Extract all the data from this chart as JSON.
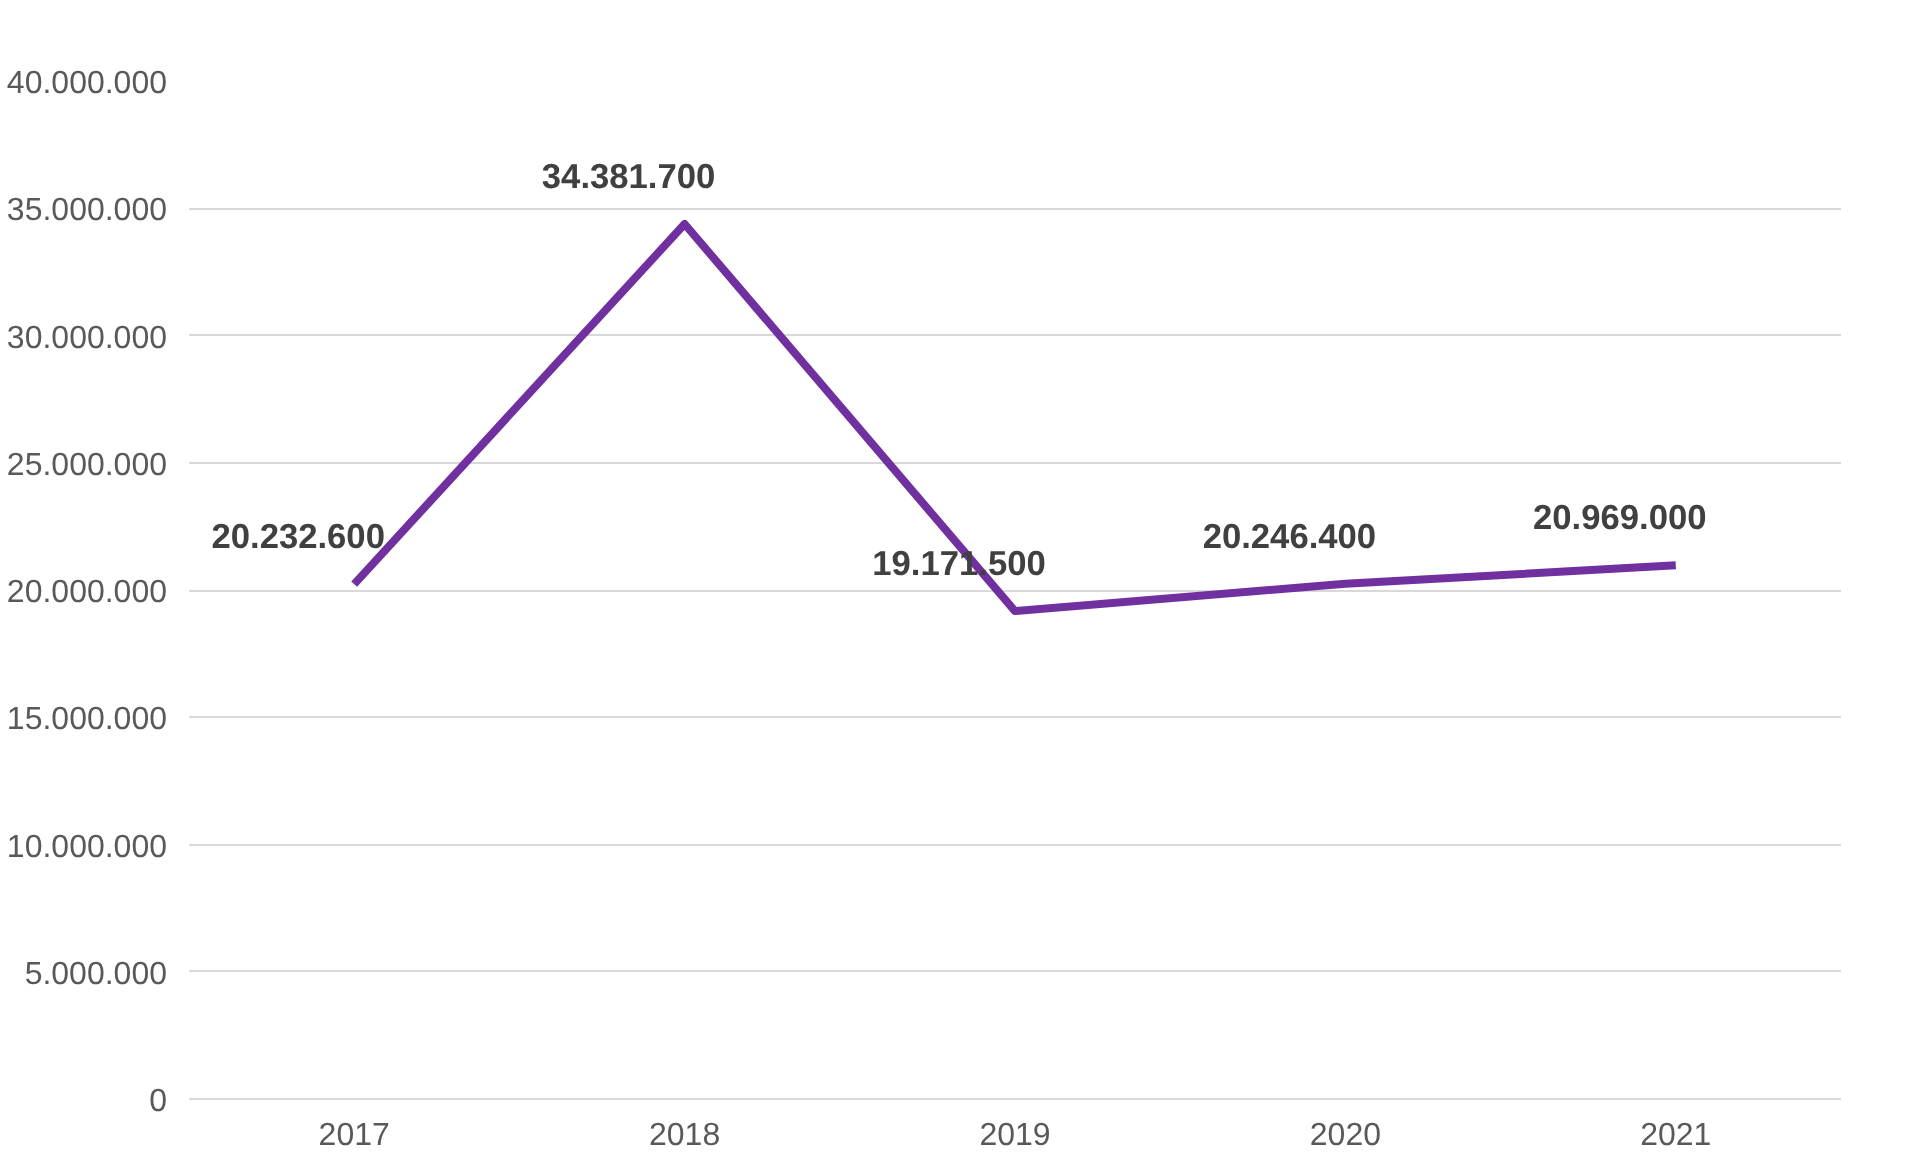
{
  "chart_data": {
    "type": "line",
    "categories": [
      "2017",
      "2018",
      "2019",
      "2020",
      "2021"
    ],
    "series": [
      {
        "color": "#7030a0",
        "values": [
          20232600,
          34381700,
          19171500,
          20246400,
          20969000
        ],
        "value_labels": [
          "20.232.600",
          "34.381.700",
          "19.171.500",
          "20.246.400",
          "20.969.000"
        ]
      }
    ],
    "ylim": [
      0,
      40000000
    ],
    "yticks": [
      0,
      {
        "value": 5000000,
        "label": "5.000.000"
      },
      {
        "value": 10000000,
        "label": "10.000.000"
      },
      {
        "value": 15000000,
        "label": "15.000.000"
      },
      {
        "value": 20000000,
        "label": "20.000.000"
      },
      {
        "value": 25000000,
        "label": "25.000.000"
      },
      {
        "value": 30000000,
        "label": "30.000.000"
      },
      {
        "value": 35000000,
        "label": "35.000.000"
      },
      {
        "value": 40000000,
        "label": "40.000.000"
      }
    ],
    "grid": "y",
    "marker": "none",
    "line_style": "solid"
  }
}
